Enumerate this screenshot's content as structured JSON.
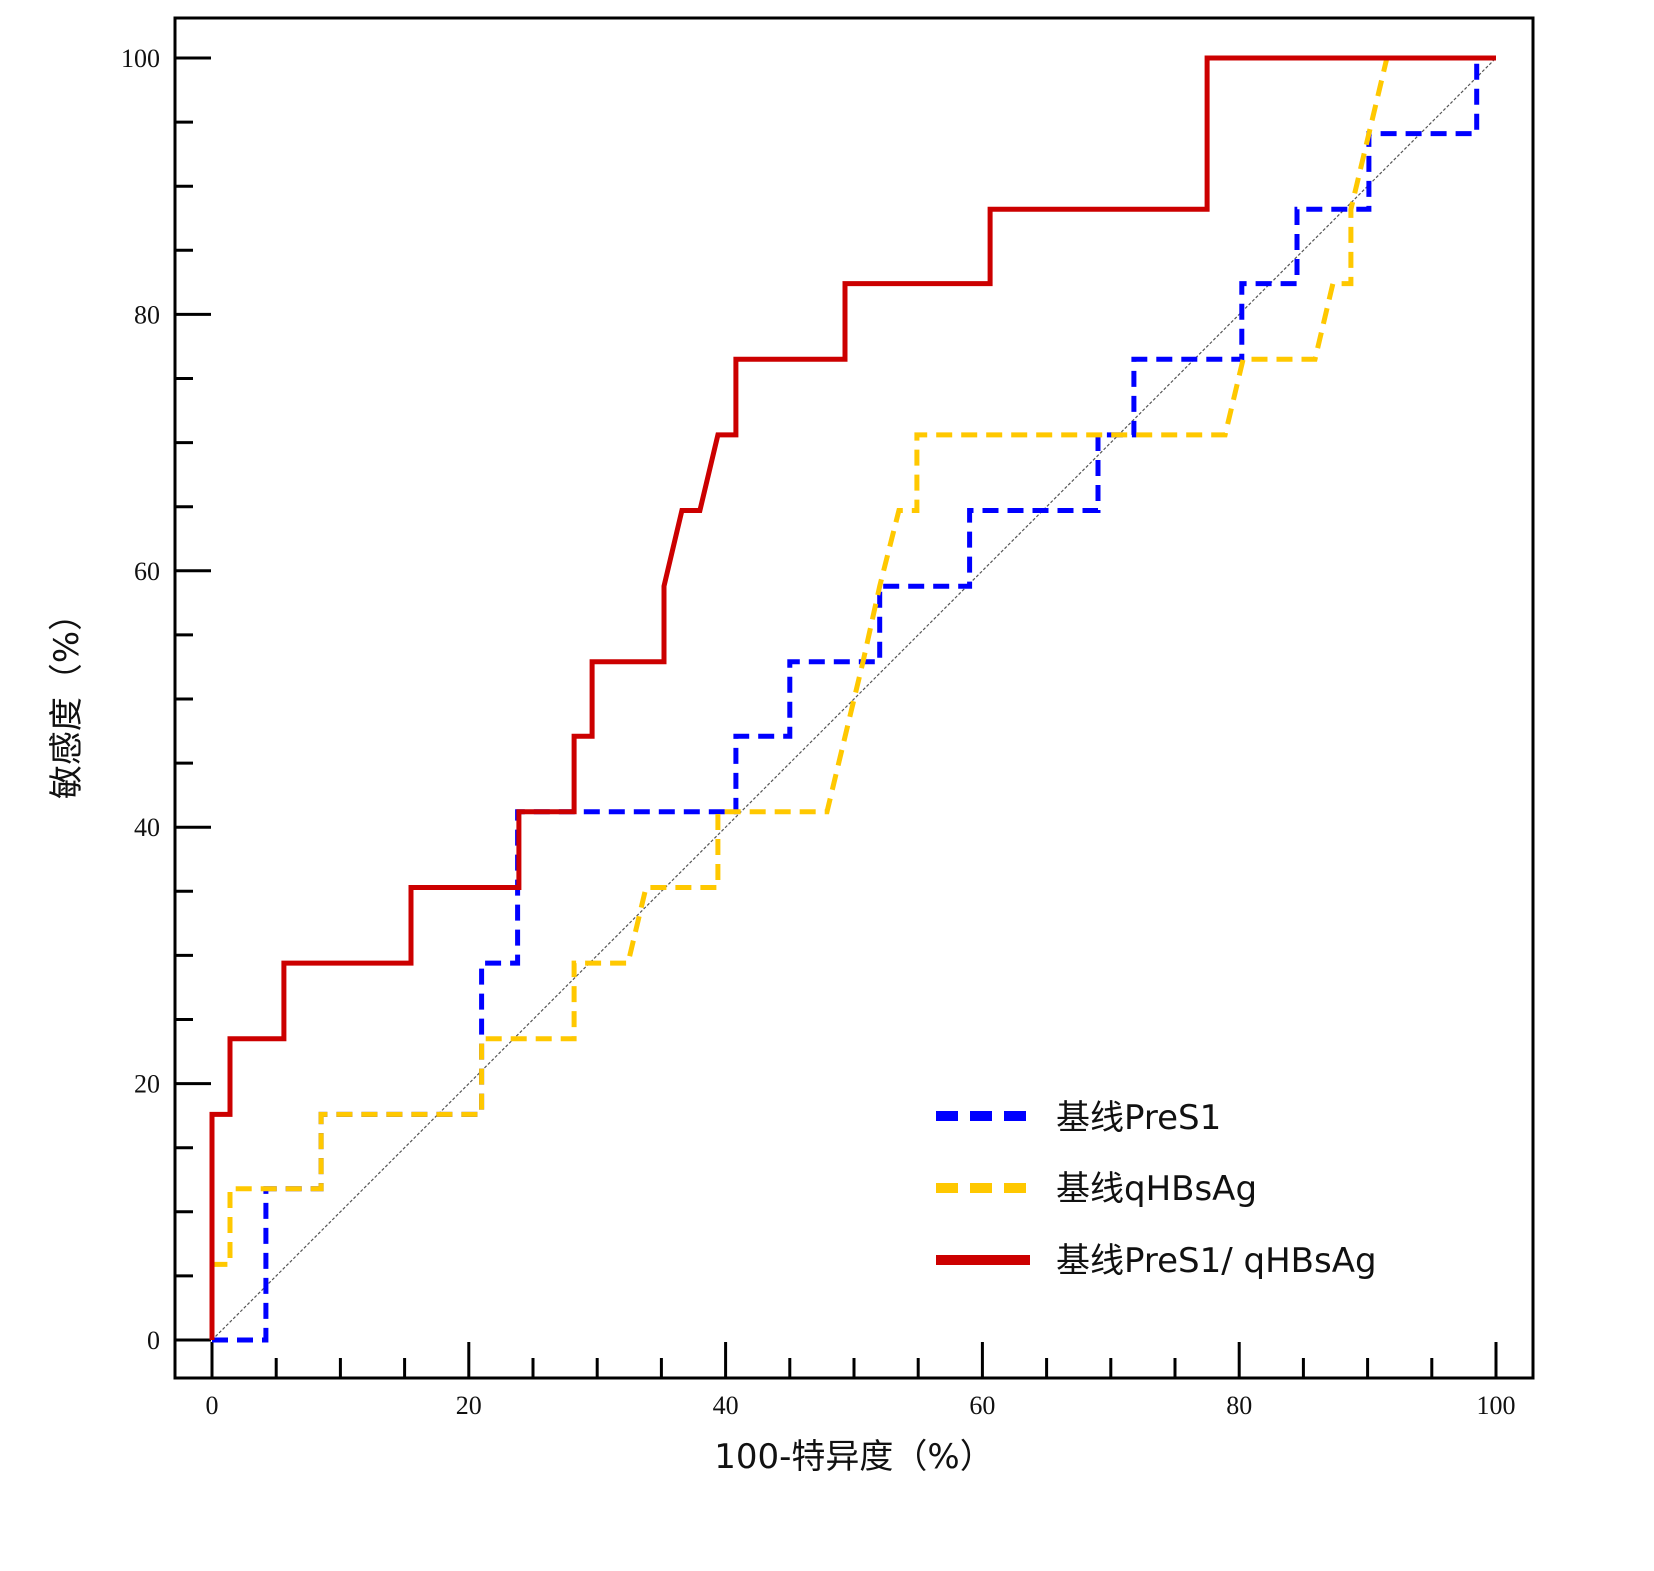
{
  "chart_data": {
    "type": "line",
    "title": "",
    "xlabel": "100-特异度（%）",
    "ylabel": "敏感度（%）",
    "xlim": [
      0,
      100
    ],
    "ylim": [
      0,
      100
    ],
    "x_ticks": [
      "0",
      "20",
      "40",
      "60",
      "80",
      "100"
    ],
    "y_ticks": [
      "0",
      "20",
      "40",
      "60",
      "80",
      "100"
    ],
    "minor_tick_step": 5,
    "grid": false,
    "legend_position": "bottom-right",
    "reference_line": {
      "name": "diagonal",
      "points": [
        [
          0,
          0
        ],
        [
          100,
          100
        ]
      ],
      "color": "#555555"
    },
    "series": [
      {
        "name": "基线PreS1",
        "color": "#0000ff",
        "style": "dashed",
        "points": [
          [
            0,
            0
          ],
          [
            4.2,
            0
          ],
          [
            4.2,
            11.8
          ],
          [
            8.5,
            11.8
          ],
          [
            8.5,
            17.6
          ],
          [
            21,
            17.6
          ],
          [
            21,
            29.4
          ],
          [
            23.8,
            29.4
          ],
          [
            23.8,
            41.2
          ],
          [
            40.8,
            41.2
          ],
          [
            40.8,
            47.1
          ],
          [
            45,
            47.1
          ],
          [
            45,
            52.9
          ],
          [
            52,
            52.9
          ],
          [
            52,
            58.8
          ],
          [
            59,
            58.8
          ],
          [
            59,
            64.7
          ],
          [
            69,
            64.7
          ],
          [
            69,
            70.6
          ],
          [
            71.8,
            70.6
          ],
          [
            71.8,
            76.5
          ],
          [
            80.2,
            76.5
          ],
          [
            80.2,
            82.4
          ],
          [
            84.5,
            82.4
          ],
          [
            84.5,
            88.2
          ],
          [
            90.1,
            88.2
          ],
          [
            90.1,
            94.1
          ],
          [
            98.5,
            94.1
          ],
          [
            98.5,
            100
          ],
          [
            100,
            100
          ]
        ]
      },
      {
        "name": "基线qHBsAg",
        "color": "#ffc800",
        "style": "dashed",
        "points": [
          [
            0,
            0
          ],
          [
            0,
            5.9
          ],
          [
            1.4,
            5.9
          ],
          [
            1.4,
            11.8
          ],
          [
            8.5,
            11.8
          ],
          [
            8.5,
            17.6
          ],
          [
            21,
            17.6
          ],
          [
            21,
            23.5
          ],
          [
            28.2,
            23.5
          ],
          [
            28.2,
            29.4
          ],
          [
            32.4,
            29.4
          ],
          [
            33.8,
            35.3
          ],
          [
            39.4,
            35.3
          ],
          [
            39.4,
            41.2
          ],
          [
            47.9,
            41.2
          ],
          [
            50.7,
            52.9
          ],
          [
            52,
            58.8
          ],
          [
            53.5,
            64.7
          ],
          [
            54.9,
            64.7
          ],
          [
            54.9,
            70.6
          ],
          [
            78.9,
            70.6
          ],
          [
            80.3,
            76.5
          ],
          [
            85.9,
            76.5
          ],
          [
            87.3,
            82.4
          ],
          [
            88.7,
            82.4
          ],
          [
            88.7,
            88.2
          ],
          [
            91.5,
            100
          ],
          [
            100,
            100
          ]
        ]
      },
      {
        "name": "基线PreS1/ qHBsAg",
        "color": "#cc0000",
        "style": "solid",
        "points": [
          [
            0,
            0
          ],
          [
            0,
            17.6
          ],
          [
            1.4,
            17.6
          ],
          [
            1.4,
            23.5
          ],
          [
            5.6,
            23.5
          ],
          [
            5.6,
            29.4
          ],
          [
            15.5,
            29.4
          ],
          [
            15.5,
            35.3
          ],
          [
            23.9,
            35.3
          ],
          [
            23.9,
            41.2
          ],
          [
            28.2,
            41.2
          ],
          [
            28.2,
            47.1
          ],
          [
            29.6,
            47.1
          ],
          [
            29.6,
            52.9
          ],
          [
            35.2,
            52.9
          ],
          [
            35.2,
            58.8
          ],
          [
            36.6,
            64.7
          ],
          [
            38,
            64.7
          ],
          [
            39.4,
            70.6
          ],
          [
            40.8,
            70.6
          ],
          [
            40.8,
            76.5
          ],
          [
            49.3,
            76.5
          ],
          [
            49.3,
            82.4
          ],
          [
            60.6,
            82.4
          ],
          [
            60.6,
            88.2
          ],
          [
            77.5,
            88.2
          ],
          [
            77.5,
            100
          ],
          [
            100,
            100
          ]
        ]
      }
    ]
  }
}
